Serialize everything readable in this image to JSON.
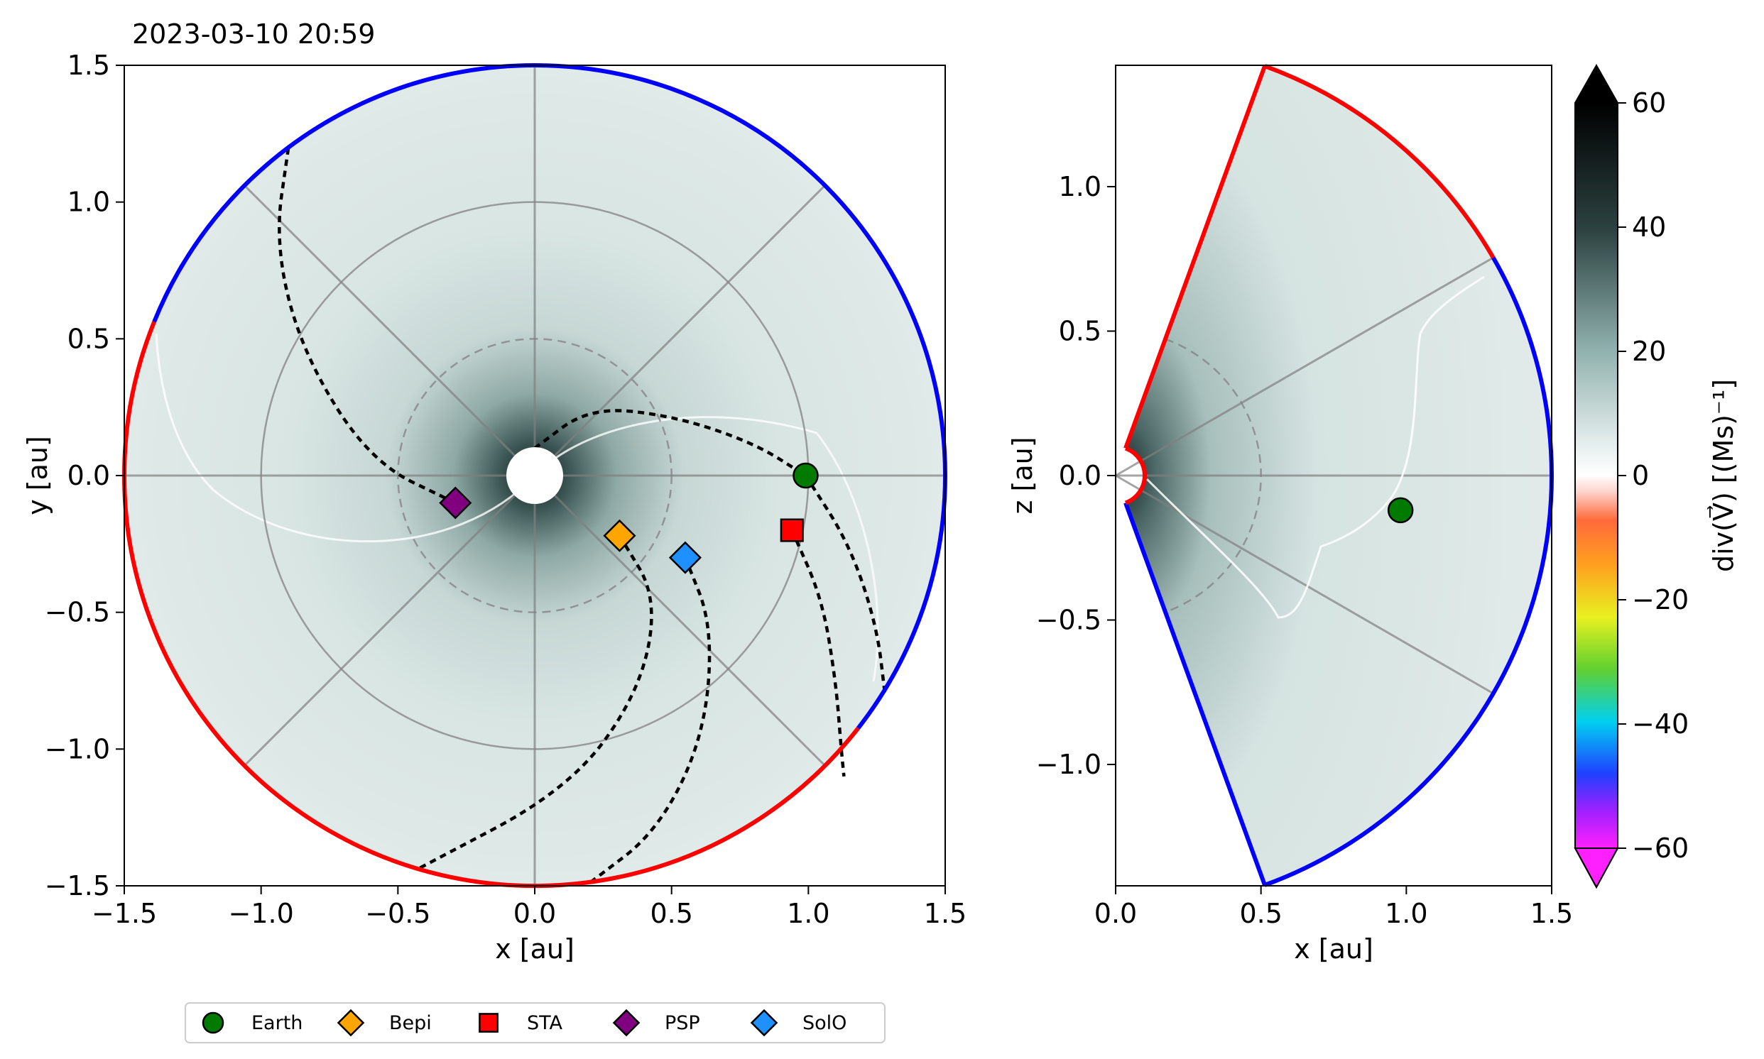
{
  "timestamp": "2023-03-10 20:59",
  "chart_data": [
    {
      "type": "polar-contour",
      "panel": "ecliptic",
      "xlabel": "x [au]",
      "ylabel": "y [au]",
      "xlim": [
        -1.5,
        1.5
      ],
      "ylim": [
        -1.5,
        1.5
      ],
      "x_ticks": [
        "−1.5",
        "−1.0",
        "−0.5",
        "0.0",
        "0.5",
        "1.0",
        "1.5"
      ],
      "y_ticks": [
        "−1.5",
        "−1.0",
        "−0.5",
        "0.0",
        "0.5",
        "1.0",
        "1.5"
      ],
      "x_tick_values": [
        -1.5,
        -1.0,
        -0.5,
        0.0,
        0.5,
        1.0,
        1.5
      ],
      "y_tick_values": [
        -1.5,
        -1.0,
        -0.5,
        0.0,
        0.5,
        1.0,
        1.5
      ],
      "outer_radius_au": 1.5,
      "inner_radius_au": 0.1,
      "grid_circles_au": [
        0.5,
        1.0
      ],
      "grid_spokes_deg": [
        0,
        45,
        90,
        135,
        180,
        225,
        270,
        315
      ],
      "boundary_polarity": [
        {
          "from_deg": -25,
          "to_deg": 158,
          "color": "#0000ff"
        },
        {
          "from_deg": 158,
          "to_deg": 322,
          "color": "#ff0000"
        },
        {
          "from_deg": 322,
          "to_deg": 335,
          "color": "#0000ff"
        }
      ],
      "markers": [
        {
          "name": "Earth",
          "x": 0.99,
          "y": 0.0
        },
        {
          "name": "Bepi",
          "x": 0.31,
          "y": -0.22
        },
        {
          "name": "STA",
          "x": 0.94,
          "y": -0.2
        },
        {
          "name": "PSP",
          "x": -0.29,
          "y": -0.1
        },
        {
          "name": "SolO",
          "x": 0.55,
          "y": -0.3
        }
      ]
    },
    {
      "type": "meridional-contour",
      "panel": "meridional",
      "xlabel": "x [au]",
      "ylabel": "z [au]",
      "xlim": [
        0.0,
        1.5
      ],
      "ylim": [
        -1.42,
        1.42
      ],
      "x_ticks": [
        "0.0",
        "0.5",
        "1.0",
        "1.5"
      ],
      "y_ticks": [
        "−1.0",
        "−0.5",
        "0.0",
        "0.5",
        "1.0"
      ],
      "x_tick_values": [
        0.0,
        0.5,
        1.0,
        1.5
      ],
      "y_tick_values": [
        -1.0,
        -0.5,
        0.0,
        0.5,
        1.0
      ],
      "sector_half_angle_deg": 70,
      "outer_radius_au": 1.5,
      "inner_radius_au": 0.1,
      "boundary_polarity": [
        {
          "from_deg": 30,
          "to_deg": 70,
          "color": "#ff0000"
        },
        {
          "from_deg": -70,
          "to_deg": 30,
          "color": "#0000ff"
        }
      ],
      "markers": [
        {
          "name": "Earth",
          "x": 0.98,
          "z": -0.12
        }
      ]
    },
    {
      "type": "colorbar",
      "label": "div(V⃗)  [(Ms)⁻¹]",
      "range": [
        -60,
        60
      ],
      "ticks": [
        "60",
        "40",
        "20",
        "0",
        "−20",
        "−40",
        "−60"
      ],
      "tick_values": [
        60,
        40,
        20,
        0,
        -20,
        -40,
        -60
      ],
      "extend": "both"
    }
  ],
  "legend": [
    {
      "label": "Earth",
      "marker": "circle",
      "color": "#007a00"
    },
    {
      "label": "Bepi",
      "marker": "diamond",
      "color": "#ffa500"
    },
    {
      "label": "STA",
      "marker": "square",
      "color": "#ff0000"
    },
    {
      "label": "PSP",
      "marker": "diamond",
      "color": "#800080"
    },
    {
      "label": "SolO",
      "marker": "diamond",
      "color": "#1e90ff"
    }
  ],
  "colors": {
    "background_field": "#d9e6e4",
    "positive_dark": "#1e2e2e",
    "red_boundary": "#ff0000",
    "blue_boundary": "#0000ff"
  }
}
